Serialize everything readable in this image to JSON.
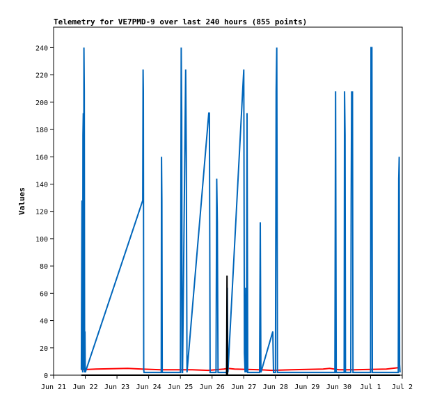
{
  "chart_data": {
    "type": "line",
    "title": "Telemetry for VE7PMD-9 over last 240 hours (855 points)",
    "ylabel": "Values",
    "xlabel": "",
    "ylim": [
      0,
      255
    ],
    "yticks": [
      0,
      20,
      40,
      60,
      80,
      100,
      120,
      140,
      160,
      180,
      200,
      220,
      240
    ],
    "grid": false,
    "legend": "none",
    "xlim": [
      "2023-06-21T00:00",
      "2023-07-02T00:00"
    ],
    "xticks": [
      {
        "date": "2023-06-21",
        "label": "Jun 21"
      },
      {
        "date": "2023-06-22",
        "label": "Jun 22"
      },
      {
        "date": "2023-06-23",
        "label": "Jun 23"
      },
      {
        "date": "2023-06-24",
        "label": "Jun 24"
      },
      {
        "date": "2023-06-25",
        "label": "Jun 25"
      },
      {
        "date": "2023-06-26",
        "label": "Jun 26"
      },
      {
        "date": "2023-06-27",
        "label": "Jun 27"
      },
      {
        "date": "2023-06-28",
        "label": "Jun 28"
      },
      {
        "date": "2023-06-29",
        "label": "Jun 29"
      },
      {
        "date": "2023-06-30",
        "label": "Jun 30"
      },
      {
        "date": "2023-07-01",
        "label": "Jul 1"
      },
      {
        "date": "2023-07-02",
        "label": "Jul 2"
      }
    ],
    "series": [
      {
        "color": "#ff0000",
        "x": [
          "2023-06-21T21:00",
          "2023-06-22T08:00",
          "2023-06-23T08:00",
          "2023-06-23T19:00",
          "2023-06-24T09:00",
          "2023-06-25T00:00",
          "2023-06-25T09:00",
          "2023-06-25T21:00",
          "2023-06-26T09:00",
          "2023-06-26T12:00",
          "2023-06-26T17:00",
          "2023-06-27T12:00",
          "2023-06-27T21:00",
          "2023-06-28T12:00",
          "2023-06-29T12:00",
          "2023-06-29T17:00",
          "2023-06-30T00:00",
          "2023-06-30T12:00",
          "2023-07-01T12:00",
          "2023-07-01T21:00"
        ],
        "values": [
          4,
          4.5,
          5,
          4.5,
          4,
          4,
          4,
          3.5,
          4.5,
          5,
          4.5,
          4,
          3.5,
          4,
          4.5,
          5,
          4,
          4,
          4.5,
          5.5
        ]
      },
      {
        "color": "#0066bb",
        "x": [
          "2023-06-21T21:00",
          "2023-06-21T21:30",
          "2023-06-21T22:00",
          "2023-06-21T22:15",
          "2023-06-21T22:30",
          "2023-06-21T22:45",
          "2023-06-21T23:00",
          "2023-06-21T23:15",
          "2023-06-21T23:30",
          "2023-06-21T23:45",
          "2023-06-22T00:00",
          "2023-06-23T19:30",
          "2023-06-23T19:45",
          "2023-06-23T20:00",
          "2023-06-23T20:15",
          "2023-06-23T20:30",
          "2023-06-24T09:30",
          "2023-06-24T09:45",
          "2023-06-24T10:00",
          "2023-06-24T10:15",
          "2023-06-25T00:00",
          "2023-06-25T00:20",
          "2023-06-25T00:40",
          "2023-06-25T01:00",
          "2023-06-25T01:20",
          "2023-06-25T01:40",
          "2023-06-25T04:00",
          "2023-06-25T04:30",
          "2023-06-25T05:00",
          "2023-06-25T21:30",
          "2023-06-25T22:00",
          "2023-06-25T22:30",
          "2023-06-26T03:00",
          "2023-06-26T03:30",
          "2023-06-26T04:00",
          "2023-06-26T04:30",
          "2023-06-26T11:00",
          "2023-06-26T11:30",
          "2023-06-26T12:00",
          "2023-06-27T00:00",
          "2023-06-27T00:30",
          "2023-06-27T01:00",
          "2023-06-27T01:30",
          "2023-06-27T02:00",
          "2023-06-27T02:30",
          "2023-06-27T03:00",
          "2023-06-27T12:00",
          "2023-06-27T12:30",
          "2023-06-27T13:00",
          "2023-06-27T22:00",
          "2023-06-27T22:30",
          "2023-06-28T00:00",
          "2023-06-28T00:30",
          "2023-06-28T01:00",
          "2023-06-28T01:30",
          "2023-06-29T21:00",
          "2023-06-29T21:30",
          "2023-06-29T22:00",
          "2023-06-30T04:00",
          "2023-06-30T04:20",
          "2023-06-30T04:40",
          "2023-06-30T05:00",
          "2023-06-30T09:00",
          "2023-06-30T09:20",
          "2023-06-30T09:40",
          "2023-06-30T10:00",
          "2023-06-30T10:20",
          "2023-06-30T10:40",
          "2023-07-01T00:00",
          "2023-07-01T00:20",
          "2023-07-01T00:40",
          "2023-07-01T01:00",
          "2023-07-01T01:20",
          "2023-07-01T21:00",
          "2023-07-01T21:20",
          "2023-07-01T21:40",
          "2023-07-01T22:00",
          "2023-07-01T22:20"
        ],
        "values": [
          4,
          128,
          2,
          176,
          192,
          4,
          240,
          208,
          2,
          32,
          2,
          128,
          224,
          208,
          4,
          2,
          2,
          160,
          128,
          2,
          2,
          112,
          240,
          192,
          2,
          2,
          224,
          160,
          2,
          192,
          192,
          2,
          2,
          144,
          112,
          2,
          2,
          64,
          2,
          224,
          16,
          2,
          64,
          2,
          192,
          2,
          2,
          112,
          2,
          32,
          2,
          2,
          208,
          240,
          2,
          2,
          208,
          2,
          2,
          208,
          176,
          2,
          2,
          128,
          208,
          176,
          208,
          2,
          2,
          240,
          240,
          240,
          2,
          2,
          144,
          160,
          8,
          2
        ]
      },
      {
        "color": "#000000",
        "x": [
          "2023-06-21T21:00",
          "2023-06-26T11:00",
          "2023-06-26T11:20",
          "2023-06-26T11:40",
          "2023-07-01T22:20"
        ],
        "values": [
          0,
          0,
          73,
          0,
          0
        ]
      }
    ]
  }
}
